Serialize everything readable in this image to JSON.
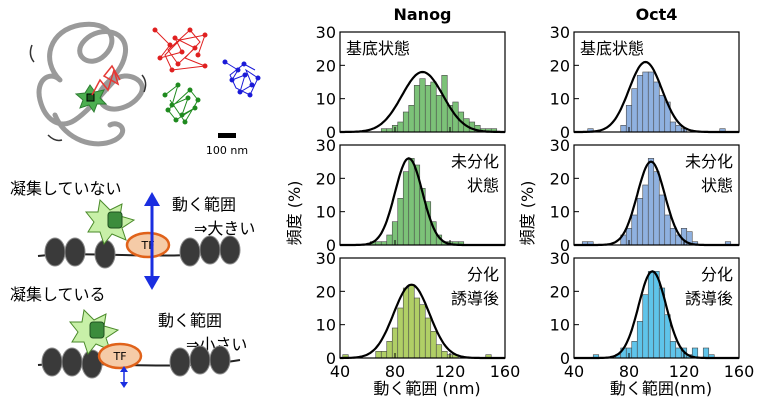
{
  "illustration": {
    "scale_bar_label": "100 nm",
    "tf_label": "TF",
    "condensed_no": {
      "title": "凝集していない",
      "range_label": "動く範囲",
      "range_result": "⇒大きい"
    },
    "condensed_yes": {
      "title": "凝集している",
      "range_label": "動く範囲",
      "range_result": "⇒小さい"
    }
  },
  "axis": {
    "xlabel": "動く範囲 (nm)",
    "xlabel_right": "動く範囲(nm)",
    "ylabel": "頻度 (%)"
  },
  "chart_data": [
    {
      "type": "bar",
      "gene": "Nanog",
      "condition": [
        "基底状態"
      ],
      "title": "Nanog",
      "color": "#7cc278",
      "bins": [
        72,
        76,
        80,
        84,
        88,
        92,
        96,
        100,
        104,
        108,
        112,
        116,
        120,
        124,
        128,
        132,
        136,
        140,
        144,
        148,
        152
      ],
      "values": [
        1,
        1,
        2,
        3,
        6,
        8,
        14,
        16,
        14,
        15,
        11,
        17,
        8,
        9,
        6,
        4,
        3,
        2,
        1,
        1,
        1
      ],
      "fit": {
        "mean": 100,
        "sd": 15,
        "peak": 18
      },
      "xlim": [
        40,
        160
      ],
      "ylim": [
        0,
        30
      ],
      "xticks": [
        40,
        80,
        120,
        160
      ],
      "yticks": [
        0,
        10,
        20,
        30
      ]
    },
    {
      "type": "bar",
      "gene": "Nanog",
      "condition": [
        "未分化",
        "状態"
      ],
      "title": "",
      "color": "#7cc278",
      "bins": [
        64,
        68,
        72,
        76,
        80,
        84,
        88,
        92,
        96,
        100,
        104,
        108,
        112,
        116,
        120,
        124,
        128
      ],
      "values": [
        1,
        1,
        1,
        3,
        7,
        14,
        22,
        26,
        24,
        17,
        13,
        7,
        3,
        1,
        1,
        1,
        1
      ],
      "fit": {
        "mean": 90,
        "sd": 10,
        "peak": 26
      },
      "xlim": [
        40,
        160
      ],
      "ylim": [
        0,
        30
      ],
      "xticks": [
        40,
        80,
        120,
        160
      ],
      "yticks": [
        0,
        10,
        20,
        30
      ]
    },
    {
      "type": "bar",
      "gene": "Nanog",
      "condition": [
        "分化",
        "誘導後"
      ],
      "title": "",
      "color": "#b0cf66",
      "bins": [
        44,
        68,
        72,
        76,
        80,
        84,
        88,
        92,
        96,
        100,
        104,
        108,
        112,
        116,
        120,
        124,
        148
      ],
      "values": [
        1,
        2,
        2,
        5,
        9,
        15,
        21,
        22,
        18,
        16,
        12,
        8,
        4,
        2,
        1,
        1,
        1
      ],
      "fit": {
        "mean": 92,
        "sd": 13,
        "peak": 22
      },
      "xlim": [
        40,
        160
      ],
      "ylim": [
        0,
        30
      ],
      "xticks": [
        40,
        80,
        120,
        160
      ],
      "yticks": [
        0,
        10,
        20,
        30
      ]
    },
    {
      "type": "bar",
      "gene": "Oct4",
      "condition": [
        "基底状態"
      ],
      "title": "Oct4",
      "color": "#8fb1e0",
      "bins": [
        52,
        76,
        80,
        84,
        88,
        92,
        96,
        100,
        104,
        108,
        112,
        116,
        120,
        148
      ],
      "values": [
        1,
        2,
        8,
        13,
        17,
        18,
        18,
        15,
        11,
        9,
        3,
        2,
        1,
        1
      ],
      "fit": {
        "mean": 92,
        "sd": 12,
        "peak": 21
      },
      "xlim": [
        40,
        160
      ],
      "ylim": [
        0,
        30
      ],
      "xticks": [
        40,
        80,
        120,
        160
      ],
      "yticks": [
        0,
        10,
        20,
        30
      ]
    },
    {
      "type": "bar",
      "gene": "Oct4",
      "condition": [
        "未分化",
        "状態"
      ],
      "title": "",
      "color": "#8fb1e0",
      "bins": [
        48,
        52,
        76,
        80,
        84,
        88,
        92,
        96,
        100,
        104,
        108,
        112,
        116,
        120,
        124,
        128,
        152
      ],
      "values": [
        1,
        1,
        3,
        5,
        9,
        14,
        18,
        26,
        22,
        15,
        9,
        5,
        3,
        5,
        4,
        1,
        1
      ],
      "fit": {
        "mean": 96,
        "sd": 10,
        "peak": 25
      },
      "xlim": [
        40,
        160
      ],
      "ylim": [
        0,
        30
      ],
      "xticks": [
        40,
        80,
        120,
        160
      ],
      "yticks": [
        0,
        10,
        20,
        30
      ]
    },
    {
      "type": "bar",
      "gene": "Oct4",
      "condition": [
        "分化",
        "誘導後"
      ],
      "title": "",
      "color": "#5fc4ea",
      "bins": [
        56,
        72,
        76,
        80,
        84,
        88,
        92,
        96,
        100,
        104,
        108,
        112,
        116,
        120,
        124,
        128,
        136,
        140
      ],
      "values": [
        1,
        1,
        3,
        3,
        5,
        11,
        19,
        26,
        26,
        21,
        13,
        5,
        3,
        3,
        1,
        3,
        3,
        1
      ],
      "fit": {
        "mean": 97,
        "sd": 10,
        "peak": 26
      },
      "xlim": [
        40,
        160
      ],
      "ylim": [
        0,
        30
      ],
      "xticks": [
        40,
        80,
        120,
        160
      ],
      "yticks": [
        0,
        10,
        20,
        30
      ]
    }
  ]
}
